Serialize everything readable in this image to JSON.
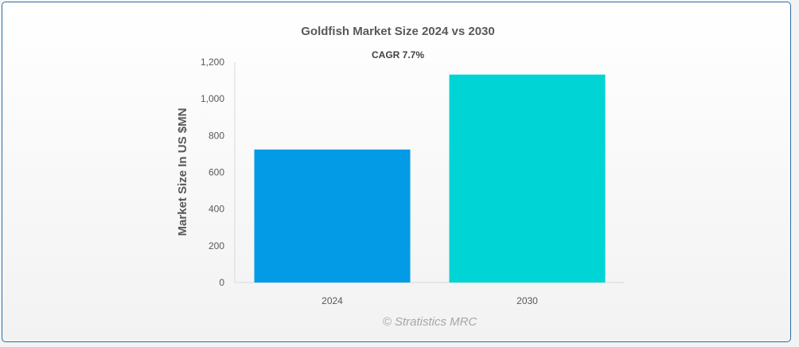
{
  "chart_data": {
    "type": "bar",
    "title": "Goldfish Market Size 2024 vs 2030",
    "subtitle": "CAGR 7.7%",
    "categories": [
      "2024",
      "2030"
    ],
    "values": [
      724,
      1132
    ],
    "colors": [
      "#039be5",
      "#00d4d4"
    ],
    "xlabel": "",
    "ylabel": "Market Size In US $MN",
    "ylim": [
      0,
      1200
    ],
    "yticks": [
      0,
      200,
      400,
      600,
      800,
      1000,
      1200
    ],
    "ytick_labels": [
      "0",
      "200",
      "400",
      "600",
      "800",
      "1,000",
      "1,200"
    ],
    "grid": false,
    "legend": "none"
  },
  "watermark": "© Stratistics MRC"
}
